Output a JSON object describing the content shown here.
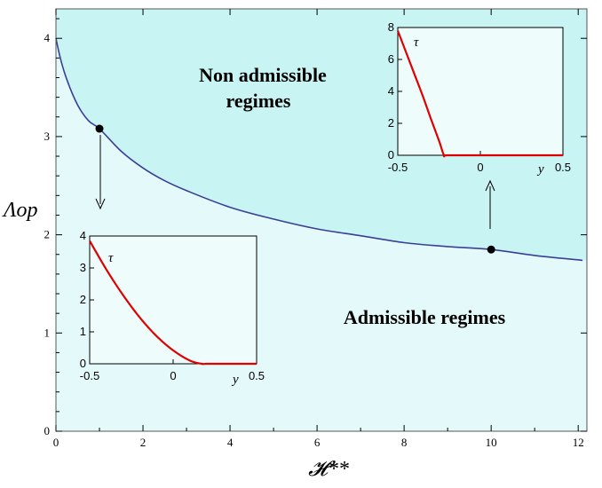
{
  "colors": {
    "non_admissible_fill": "#c8f4f4",
    "admissible_fill": "#e4fafa",
    "curve": "#3a3f96",
    "inset_curve": "#e00000",
    "marker": "#000000",
    "inset_bg": "#eefcfc"
  },
  "chart_data": [
    {
      "type": "line",
      "xlabel": "𝓗**",
      "ylabel": "Λop",
      "xlim": [
        0,
        12.2
      ],
      "ylim": [
        0,
        4.3
      ],
      "x_ticks": [
        "0",
        "2",
        "4",
        "6",
        "8",
        "10",
        "12"
      ],
      "y_ticks": [
        "0",
        "1",
        "2",
        "3",
        "4"
      ],
      "grid": false,
      "series": [
        {
          "x": [
            0,
            0.1,
            0.25,
            0.5,
            0.75,
            1,
            1.5,
            2,
            2.5,
            3,
            4,
            5,
            6,
            7,
            8,
            9,
            10,
            11,
            12.1
          ],
          "y": [
            4.0,
            3.8,
            3.58,
            3.32,
            3.16,
            3.08,
            2.85,
            2.68,
            2.55,
            2.45,
            2.28,
            2.16,
            2.06,
            1.99,
            1.92,
            1.88,
            1.85,
            1.79,
            1.74
          ]
        }
      ],
      "markers": [
        {
          "x": 1,
          "y": 3.08
        },
        {
          "x": 10,
          "y": 1.85
        }
      ],
      "region_labels": [
        {
          "id": "non_admissible",
          "lines": [
            "Non admissible",
            "regimes"
          ]
        },
        {
          "id": "admissible",
          "lines": [
            "Admissible regimes"
          ]
        }
      ]
    },
    {
      "type": "line",
      "id": "inset_left",
      "xlabel": "y",
      "ylabel": "τ",
      "xlim": [
        -0.5,
        0.5
      ],
      "ylim": [
        0,
        4
      ],
      "x_ticks": [
        "-0.5",
        "0",
        "0.5"
      ],
      "y_ticks": [
        "0",
        "1",
        "2",
        "3",
        "4"
      ],
      "series": [
        {
          "x": [
            -0.5,
            -0.4,
            -0.3,
            -0.2,
            -0.1,
            0.0,
            0.1,
            0.17,
            0.2,
            0.3,
            0.4,
            0.5
          ],
          "y": [
            3.85,
            2.95,
            2.15,
            1.45,
            0.87,
            0.42,
            0.1,
            0.0,
            0.0,
            0.0,
            0.0,
            0.0
          ]
        }
      ]
    },
    {
      "type": "line",
      "id": "inset_right",
      "xlabel": "y",
      "ylabel": "τ",
      "xlim": [
        -0.5,
        0.5
      ],
      "ylim": [
        0,
        8
      ],
      "x_ticks": [
        "-0.5",
        "0",
        "0.5"
      ],
      "y_ticks": [
        "0",
        "2",
        "4",
        "6",
        "8"
      ],
      "series": [
        {
          "x": [
            -0.5,
            -0.45,
            -0.4,
            -0.35,
            -0.3,
            -0.25,
            -0.22,
            -0.2,
            0.0,
            0.2,
            0.5
          ],
          "y": [
            7.8,
            6.45,
            5.1,
            3.75,
            2.3,
            0.9,
            0.0,
            0.0,
            0.0,
            0.0,
            0.0
          ]
        }
      ]
    }
  ]
}
